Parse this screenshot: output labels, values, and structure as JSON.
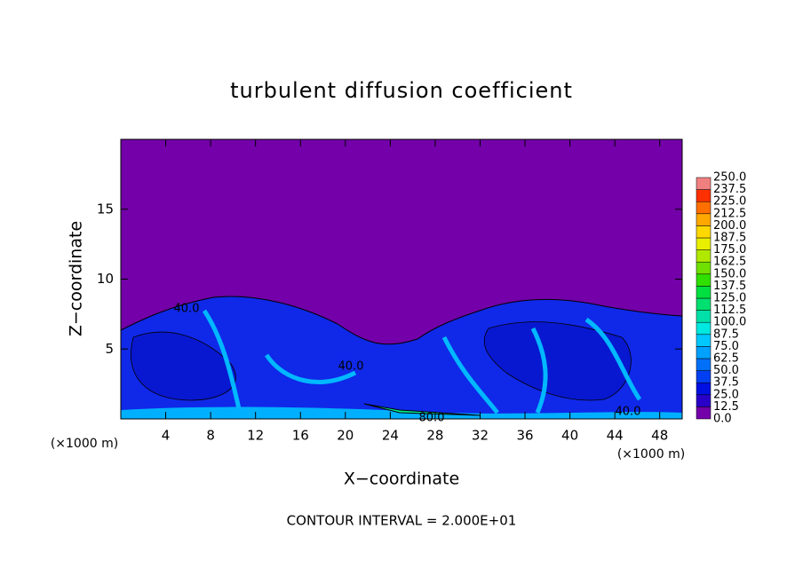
{
  "chart_data": {
    "type": "contour",
    "title": "turbulent diffusion coefficient",
    "x_label": "X−coordinate",
    "y_label": "Z−coordinate",
    "x_unit_label": "(×1000 m)",
    "x_unit_label_right": "(×1000 m)",
    "footer": "CONTOUR INTERVAL = 2.000E+01",
    "xlim": [
      0,
      50
    ],
    "ylim": [
      0,
      20
    ],
    "xticks": [
      4,
      8,
      12,
      16,
      20,
      24,
      28,
      32,
      36,
      40,
      44,
      48
    ],
    "yticks": [
      5,
      10,
      15
    ],
    "contour_labels": [
      "40.0",
      "40.0",
      "80.0",
      "40.0"
    ],
    "colorbar": {
      "levels": [
        {
          "value": 0,
          "label": "0.0"
        },
        {
          "value": 12.5,
          "label": "12.5"
        },
        {
          "value": 25,
          "label": "25.0"
        },
        {
          "value": 37.5,
          "label": "37.5"
        },
        {
          "value": 50,
          "label": "50.0"
        },
        {
          "value": 62.5,
          "label": "62.5"
        },
        {
          "value": 75,
          "label": "75.0"
        },
        {
          "value": 87.5,
          "label": "87.5"
        },
        {
          "value": 100,
          "label": "100.0"
        },
        {
          "value": 112.5,
          "label": "112.5"
        },
        {
          "value": 125,
          "label": "125.0"
        },
        {
          "value": 137.5,
          "label": "137.5"
        },
        {
          "value": 150,
          "label": "150.0"
        },
        {
          "value": 162.5,
          "label": "162.5"
        },
        {
          "value": 175,
          "label": "175.0"
        },
        {
          "value": 187.5,
          "label": "187.5"
        },
        {
          "value": 200,
          "label": "200.0"
        },
        {
          "value": 212.5,
          "label": "212.5"
        },
        {
          "value": 225,
          "label": "225.0"
        },
        {
          "value": 237.5,
          "label": "237.5"
        },
        {
          "value": 250,
          "label": "250.0"
        }
      ],
      "colors": [
        "#7300a8",
        "#2800c8",
        "#0010e0",
        "#0040f0",
        "#0070f8",
        "#00a0ff",
        "#00c8ff",
        "#00e8e0",
        "#00e0a8",
        "#00e070",
        "#00e040",
        "#30e000",
        "#70e000",
        "#b0e800",
        "#e8f000",
        "#ffd800",
        "#ffa800",
        "#ff7000",
        "#ff3000",
        "#f08080"
      ]
    }
  }
}
